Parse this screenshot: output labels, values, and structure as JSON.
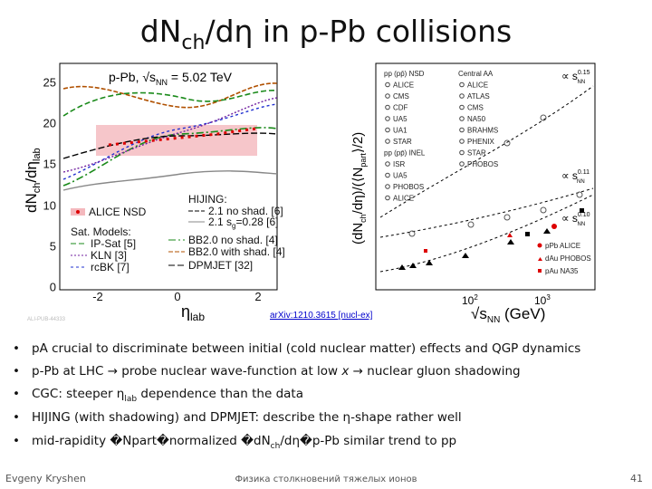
{
  "header": {
    "title": [
      "dN",
      "ch",
      "/dη in p-Pb collisions"
    ]
  },
  "figure_left": {
    "annotation": [
      "p-Pb, √s",
      "NN",
      " = 5.02 TeV"
    ],
    "y_label": [
      "dN",
      "ch",
      "/dη",
      "lab"
    ],
    "x_label": [
      "η",
      "lab"
    ],
    "y_ticks": [
      "0",
      "5",
      "10",
      "15",
      "20",
      "25"
    ],
    "x_ticks": [
      "-2",
      "0",
      "2"
    ],
    "legend": {
      "data": "ALICE NSD",
      "hijing_head": "HIJING:",
      "hijing_1": "2.1 no shad. [6]",
      "hijing_2": [
        "2.1 s",
        "g",
        "=0.28 [6]"
      ],
      "sat_head": "Sat. Models:",
      "ipsat": "IP-Sat [5]",
      "kln": "KLN [3]",
      "rcbk": "rcBK [7]",
      "bb_noshad": "BB2.0 no shad. [4]",
      "bb_shad": "BB2.0 with shad. [4]",
      "dpmjet": "DPMJET [32]"
    },
    "figure_id": "ALI-PUB-44333"
  },
  "figure_right": {
    "y_label": [
      "(dN",
      "ch",
      "/dη)/(⟨N",
      "part",
      "⟩/2)"
    ],
    "x_label": [
      "√s",
      "NN",
      " (GeV)"
    ],
    "x_ticks": [
      [
        "10",
        "2"
      ],
      [
        "10",
        "3"
      ]
    ],
    "legend_pp": [
      "pp (pp̄) NSD",
      "ALICE",
      "CMS",
      "CDF",
      "UA5",
      "UA1",
      "STAR",
      "pp (pp̄) INEL",
      "ISR",
      "UA5",
      "PHOBOS",
      "ALICE"
    ],
    "legend_aa": [
      "Central AA",
      "ALICE",
      "ATLAS",
      "CMS",
      "NA50",
      "BRAHMS",
      "PHENIX",
      "STAR",
      "PHOBOS"
    ],
    "fits": [
      [
        "∝ s",
        "0.15",
        "NN"
      ],
      [
        "∝ s",
        "0.11",
        "NN"
      ],
      [
        "∝ s",
        "0.10",
        "NN"
      ]
    ],
    "legend_pa": [
      "pPb ALICE",
      "dAu PHOBOS",
      "pAu NA35"
    ],
    "reference": "arXiv:1210.3615 [nucl-ex]"
  },
  "bullets": [
    [
      "pA crucial to discriminate between initial (cold nuclear matter) effects and QGP dynamics"
    ],
    [
      "p-Pb at LHC → probe nuclear wave-function at low ",
      "x",
      " → nuclear gluon shadowing"
    ],
    [
      "CGC: steeper η",
      "lab",
      " dependence than the data"
    ],
    [
      "HIJING (with shadowing) and DPMJET: describe the η-shape rather well"
    ],
    [
      "mid-rapidity �Npart�normalized �dN",
      "ch",
      "/dη�p-Pb similar trend to pp"
    ]
  ],
  "footer": {
    "author": "Evgeny Kryshen",
    "course": "Физика столкновений тяжелых ионов",
    "page": "41"
  }
}
